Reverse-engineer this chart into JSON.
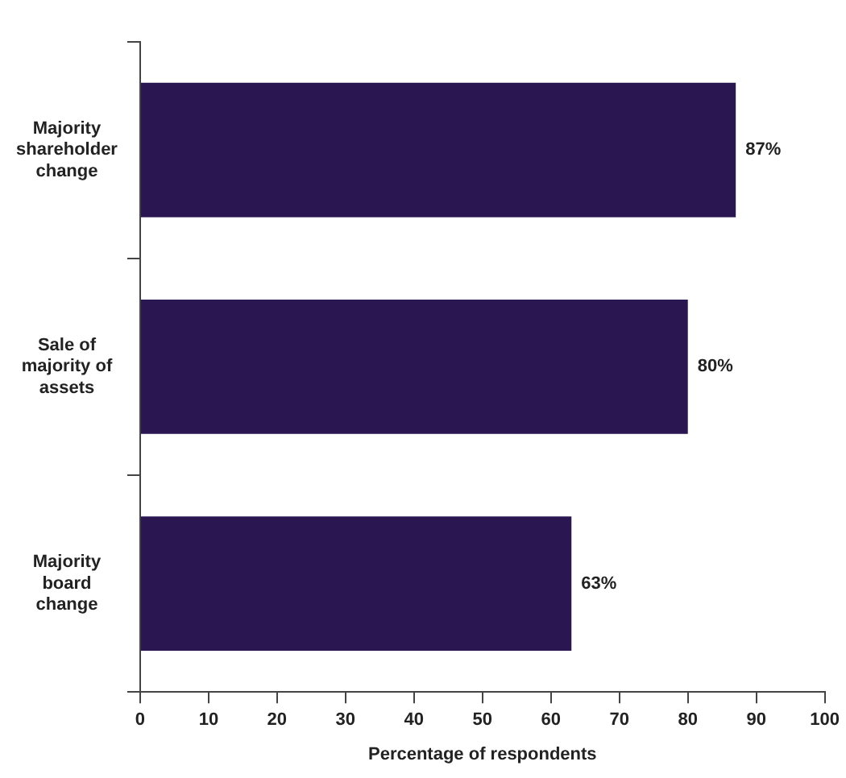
{
  "chart_data": {
    "type": "bar",
    "orientation": "horizontal",
    "xlabel": "Percentage of respondents",
    "categories": [
      "Majority shareholder change",
      "Sale of majority of assets",
      "Majority board change"
    ],
    "values": [
      87,
      80,
      63
    ],
    "value_labels": [
      "87%",
      "80%",
      "63%"
    ],
    "color": "#2a1650",
    "xlim": [
      0,
      100
    ],
    "xticks": [
      0,
      10,
      20,
      30,
      40,
      50,
      60,
      70,
      80,
      90,
      100
    ],
    "grid": false,
    "legend": false
  }
}
